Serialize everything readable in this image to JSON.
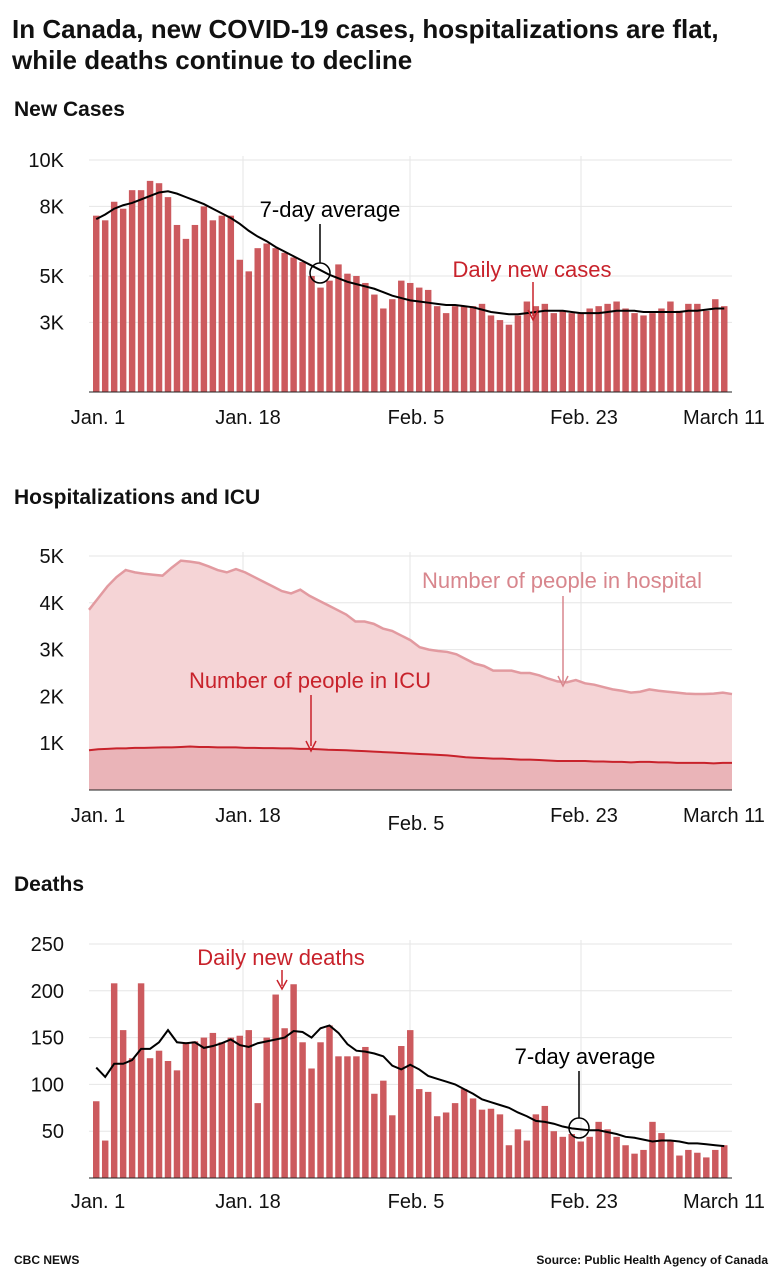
{
  "title": "In Canada, new COVID-19 cases, hospitalizations are flat, while deaths continue to decline",
  "colors": {
    "bar": "#cc5a5e",
    "hospital_fill": "#f5d4d6",
    "hospital_line": "#e29aa0",
    "icu_fill": "#eab4b8",
    "icu_line": "#c8222b",
    "annotation_red": "#c8222b",
    "annotation_pink": "#d8868d",
    "avg_line": "#000000"
  },
  "footer": {
    "left": "CBC NEWS",
    "right": "Source: Public Health Agency of Canada"
  },
  "chart_data": [
    {
      "type": "bar",
      "title": "New Cases",
      "ylim": [
        0,
        10000
      ],
      "yticks": [
        3000,
        5000,
        8000,
        10000
      ],
      "ytick_labels": [
        "3K",
        "5K",
        "8K",
        "10K"
      ],
      "xtick_labels": [
        "Jan. 1",
        "Jan. 18",
        "Feb. 5",
        "Feb. 23",
        "March 11"
      ],
      "grid": true,
      "annotations": [
        "7-day average",
        "Daily new cases"
      ],
      "series": [
        {
          "name": "Daily new cases",
          "values": [
            7600,
            7400,
            8200,
            7900,
            8700,
            8700,
            9100,
            9000,
            8400,
            7200,
            6600,
            7200,
            8000,
            7400,
            7600,
            7600,
            5700,
            5200,
            6200,
            6400,
            6200,
            6000,
            5800,
            5600,
            5000,
            4500,
            4800,
            5500,
            5100,
            5000,
            4700,
            4200,
            3600,
            4000,
            4800,
            4700,
            4500,
            4400,
            3700,
            3400,
            3700,
            3700,
            3700,
            3800,
            3300,
            3100,
            2900,
            3300,
            3900,
            3700,
            3800,
            3400,
            3500,
            3400,
            3400,
            3600,
            3700,
            3800,
            3900,
            3600,
            3400,
            3300,
            3400,
            3600,
            3900,
            3500,
            3800,
            3800,
            3500,
            4000,
            3700
          ]
        },
        {
          "name": "7-day average",
          "values": [
            7450,
            7650,
            7900,
            8050,
            8150,
            8300,
            8450,
            8600,
            8650,
            8550,
            8400,
            8250,
            8100,
            7900,
            7700,
            7500,
            7250,
            6950,
            6700,
            6500,
            6250,
            6050,
            5850,
            5650,
            5450,
            5250,
            5050,
            4900,
            4750,
            4650,
            4550,
            4450,
            4300,
            4150,
            4050,
            3950,
            3900,
            3850,
            3800,
            3750,
            3750,
            3700,
            3650,
            3550,
            3450,
            3400,
            3350,
            3350,
            3400,
            3450,
            3500,
            3500,
            3500,
            3450,
            3400,
            3400,
            3400,
            3450,
            3500,
            3500,
            3500,
            3450,
            3450,
            3450,
            3450,
            3450,
            3500,
            3500,
            3550,
            3600,
            3600
          ]
        }
      ]
    },
    {
      "type": "area",
      "title": "Hospitalizations and ICU",
      "ylim": [
        0,
        5000
      ],
      "yticks": [
        1000,
        2000,
        3000,
        4000,
        5000
      ],
      "ytick_labels": [
        "1K",
        "2K",
        "3K",
        "4K",
        "5K"
      ],
      "xtick_labels": [
        "Jan. 1",
        "Jan. 18",
        "Feb. 5",
        "Feb. 23",
        "March 11"
      ],
      "grid": true,
      "annotations": [
        "Number of people in hospital",
        "Number of people in ICU"
      ],
      "series": [
        {
          "name": "Number of people in hospital",
          "values": [
            3850,
            4100,
            4350,
            4550,
            4700,
            4650,
            4620,
            4600,
            4580,
            4750,
            4900,
            4880,
            4850,
            4780,
            4700,
            4650,
            4720,
            4650,
            4550,
            4450,
            4350,
            4250,
            4200,
            4280,
            4150,
            4050,
            3950,
            3850,
            3750,
            3600,
            3600,
            3550,
            3450,
            3400,
            3300,
            3200,
            3050,
            3000,
            2970,
            2950,
            2900,
            2800,
            2700,
            2650,
            2550,
            2550,
            2550,
            2500,
            2500,
            2450,
            2380,
            2320,
            2300,
            2350,
            2280,
            2250,
            2200,
            2150,
            2120,
            2080,
            2100,
            2150,
            2120,
            2100,
            2080,
            2060,
            2050,
            2050,
            2060,
            2080,
            2050
          ]
        },
        {
          "name": "Number of people in ICU",
          "values": [
            850,
            870,
            880,
            890,
            890,
            900,
            900,
            905,
            910,
            910,
            920,
            930,
            920,
            920,
            910,
            910,
            910,
            900,
            900,
            895,
            895,
            890,
            890,
            880,
            880,
            870,
            860,
            855,
            850,
            840,
            830,
            820,
            810,
            800,
            790,
            780,
            770,
            760,
            750,
            740,
            720,
            700,
            690,
            680,
            670,
            670,
            660,
            650,
            650,
            640,
            630,
            620,
            620,
            620,
            620,
            610,
            610,
            600,
            600,
            590,
            600,
            600,
            590,
            590,
            580,
            580,
            580,
            580,
            570,
            580,
            580
          ]
        }
      ]
    },
    {
      "type": "bar",
      "title": "Deaths",
      "ylim": [
        0,
        250
      ],
      "yticks": [
        50,
        100,
        150,
        200,
        250
      ],
      "ytick_labels": [
        "50",
        "100",
        "150",
        "200",
        "250"
      ],
      "xtick_labels": [
        "Jan. 1",
        "Jan. 18",
        "Feb. 5",
        "Feb. 23",
        "March 11"
      ],
      "grid": true,
      "annotations": [
        "Daily new deaths",
        "7-day average"
      ],
      "series": [
        {
          "name": "Daily new deaths",
          "values": [
            82,
            40,
            208,
            158,
            128,
            208,
            128,
            136,
            125,
            115,
            145,
            146,
            150,
            155,
            145,
            150,
            152,
            158,
            80,
            150,
            196,
            160,
            207,
            145,
            117,
            145,
            163,
            130,
            130,
            130,
            140,
            90,
            104,
            67,
            141,
            158,
            95,
            92,
            66,
            70,
            80,
            95,
            85,
            73,
            74,
            68,
            35,
            52,
            40,
            68,
            77,
            50,
            44,
            47,
            39,
            44,
            60,
            52,
            44,
            35,
            26,
            30,
            60,
            48,
            40,
            24,
            30,
            27,
            22,
            30,
            35
          ]
        },
        {
          "name": "7-day average",
          "values": [
            118,
            108,
            122,
            122,
            126,
            138,
            138,
            145,
            158,
            145,
            144,
            145,
            139,
            141,
            144,
            148,
            142,
            140,
            144,
            146,
            148,
            150,
            157,
            156,
            150,
            160,
            163,
            155,
            143,
            136,
            135,
            133,
            130,
            120,
            116,
            121,
            116,
            109,
            106,
            103,
            100,
            95,
            90,
            84,
            81,
            78,
            75,
            70,
            66,
            61,
            60,
            58,
            55,
            53,
            52,
            51,
            51,
            49,
            47,
            44,
            43,
            41,
            39,
            40,
            40,
            39,
            37,
            37,
            36,
            35,
            34
          ]
        }
      ]
    }
  ]
}
